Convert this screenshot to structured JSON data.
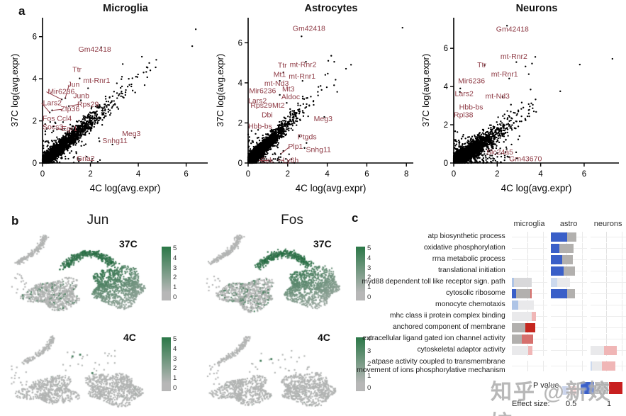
{
  "panel_labels": {
    "a": "a",
    "b": "b",
    "c": "c"
  },
  "watermark": "知乎 @新姣姣",
  "colors": {
    "point": "#000000",
    "gene_label": "#8e3a44",
    "green_hi": "#2b7747",
    "green_lo": "#b7b7b7",
    "blue": "#3a5fc8",
    "gray": "#b2b0ae",
    "lightblue": "#aec4e6",
    "palerblue": "#ccd9ee",
    "lightgray": "#d8d8da",
    "palegray": "#e9e9eb",
    "lightred": "#f0b6b6",
    "mutedred": "#d6706d",
    "red": "#c5271f"
  },
  "chart_data": [
    {
      "type": "scatter",
      "panel": "a",
      "title": "Microglia",
      "xlabel": "4C log(avg.expr)",
      "ylabel": "37C log(avg.expr)",
      "xlim": [
        0,
        6.9
      ],
      "ylim": [
        0,
        6.9
      ],
      "x_ticks": [
        0,
        2,
        4,
        6
      ],
      "y_ticks": [
        0,
        2,
        4,
        6
      ],
      "cloud": {
        "n": 2700,
        "scale": 0.72,
        "noise": 0.15,
        "stray": 120,
        "sx": 2.6,
        "sy": 2.3,
        "xstretch": 1
      },
      "outliers": [
        [
          6.4,
          6.35
        ],
        [
          6.25,
          5.55
        ],
        [
          4.75,
          4.9
        ],
        [
          4.35,
          4.55
        ],
        [
          4.5,
          4.4
        ],
        [
          3.35,
          4.7
        ],
        [
          3.9,
          4.1
        ],
        [
          4.15,
          5.05
        ],
        [
          3.6,
          4.0
        ],
        [
          3.3,
          3.4
        ],
        [
          2.45,
          5.5
        ]
      ],
      "labeled_genes": [
        {
          "name": "Gm42418",
          "x": 2.45,
          "y": 5.5,
          "lx": 1.5,
          "ly": 5.28
        },
        {
          "name": "Ttr",
          "x": 1.55,
          "y": 4.02,
          "lx": 1.25,
          "ly": 4.32
        },
        {
          "name": "Jun",
          "x": 0.95,
          "y": 3.08,
          "lx": 1.05,
          "ly": 3.62,
          "line": true
        },
        {
          "name": "mt-Rnr1",
          "x": 1.9,
          "y": 3.55,
          "lx": 1.7,
          "ly": 3.8
        },
        {
          "name": "Mir6236",
          "x": 0.8,
          "y": 3.02,
          "lx": 0.22,
          "ly": 3.28,
          "line": true
        },
        {
          "name": "Junb",
          "x": 1.6,
          "y": 2.98,
          "lx": 1.28,
          "ly": 3.08
        },
        {
          "name": "Lars2",
          "x": 0.3,
          "y": 2.4,
          "lx": 0.02,
          "ly": 2.75,
          "line": true
        },
        {
          "name": "Zfp36",
          "x": 0.4,
          "y": 2.5,
          "lx": 0.75,
          "ly": 2.45,
          "line": true
        },
        {
          "name": "Rps29",
          "x": 1.1,
          "y": 2.7,
          "lx": 1.45,
          "ly": 2.68,
          "line": true
        },
        {
          "name": "Fos",
          "x": 0.32,
          "y": 1.95,
          "lx": 0.0,
          "ly": 2.0
        },
        {
          "name": "Ccl4",
          "x": 0.52,
          "y": 1.93,
          "lx": 0.6,
          "ly": 2.0
        },
        {
          "name": "Socs3",
          "x": 0.45,
          "y": 1.52,
          "lx": 0.0,
          "ly": 1.6
        },
        {
          "name": "Egr1",
          "x": 0.6,
          "y": 1.6,
          "lx": 0.8,
          "ly": 1.52,
          "line": true
        },
        {
          "name": "Meg3",
          "x": 3.85,
          "y": 1.2,
          "lx": 3.32,
          "ly": 1.28
        },
        {
          "name": "Snhg11",
          "x": 2.92,
          "y": 0.88,
          "lx": 2.5,
          "ly": 0.95
        },
        {
          "name": "Gria2",
          "x": 1.32,
          "y": 0.3,
          "lx": 1.42,
          "ly": 0.1
        }
      ]
    },
    {
      "type": "scatter",
      "panel": "a",
      "title": "Astrocytes",
      "xlabel": "4C log(avg.expr)",
      "ylabel": "37C log(avg.expr)",
      "xlim": [
        0,
        8.35
      ],
      "ylim": [
        0,
        7.25
      ],
      "x_ticks": [
        0,
        2,
        4,
        6,
        8
      ],
      "y_ticks": [
        0,
        2,
        4,
        6
      ],
      "cloud": {
        "n": 3200,
        "scale": 0.58,
        "noise": 0.14,
        "stray": 140,
        "sx": 2.6,
        "sy": 1.9,
        "xstretch": 1
      },
      "outliers": [
        [
          7.8,
          6.75
        ],
        [
          5.2,
          4.9
        ],
        [
          4.2,
          5.35
        ],
        [
          4.05,
          5.1
        ],
        [
          4.35,
          5.05
        ],
        [
          3.9,
          4.4
        ],
        [
          3.55,
          3.8
        ],
        [
          4.5,
          3.55
        ],
        [
          3.3,
          3.1
        ],
        [
          2.7,
          6.32
        ],
        [
          2.92,
          5.05
        ]
      ],
      "labeled_genes": [
        {
          "name": "Gm42418",
          "x": 2.7,
          "y": 6.32,
          "lx": 2.25,
          "ly": 6.6
        },
        {
          "name": "Ttr",
          "x": 1.78,
          "y": 4.52,
          "lx": 1.5,
          "ly": 4.75
        },
        {
          "name": "mt-Rnr2",
          "x": 2.92,
          "y": 5.05,
          "lx": 2.1,
          "ly": 4.8
        },
        {
          "name": "Mt1",
          "x": 1.6,
          "y": 4.1,
          "lx": 1.28,
          "ly": 4.3
        },
        {
          "name": "mt-Rnr1",
          "x": 2.75,
          "y": 4.1,
          "lx": 2.05,
          "ly": 4.2
        },
        {
          "name": "mt-Nd3",
          "lx": 0.82,
          "ly": 3.85
        },
        {
          "name": "Mir6236",
          "lx": 0.05,
          "ly": 3.48
        },
        {
          "name": "Mt3",
          "x": 1.6,
          "y": 3.4,
          "lx": 1.72,
          "ly": 3.58
        },
        {
          "name": "Aldoc",
          "x": 1.95,
          "y": 3.0,
          "lx": 1.68,
          "ly": 3.18
        },
        {
          "name": "Lars2",
          "lx": 0.0,
          "ly": 2.98
        },
        {
          "name": "Rps29",
          "lx": 0.12,
          "ly": 2.75
        },
        {
          "name": "Mt2",
          "lx": 1.22,
          "ly": 2.75
        },
        {
          "name": "Dbi",
          "lx": 0.68,
          "ly": 2.28
        },
        {
          "name": "Meg3",
          "x": 3.85,
          "y": 2.3,
          "lx": 3.32,
          "ly": 2.08
        },
        {
          "name": "Hbb-bs",
          "x": 0.5,
          "y": 1.65,
          "lx": 0.0,
          "ly": 1.72
        },
        {
          "name": "Ptgds",
          "x": 2.95,
          "y": 1.0,
          "lx": 2.5,
          "ly": 1.18
        },
        {
          "name": "Plp1",
          "x": 1.65,
          "y": 0.45,
          "lx": 2.02,
          "ly": 0.7,
          "line": true
        },
        {
          "name": "Snhg11",
          "x": 2.85,
          "y": 0.75,
          "lx": 2.92,
          "ly": 0.55
        },
        {
          "name": "Cck",
          "x": 1.05,
          "y": 0.12,
          "lx": 0.62,
          "ly": 0.02,
          "line": true
        },
        {
          "name": "Ly6h",
          "x": 1.5,
          "y": 0.15,
          "lx": 1.75,
          "ly": 0.02,
          "line": true
        }
      ]
    },
    {
      "type": "scatter",
      "panel": "a",
      "title": "Neurons",
      "xlabel": "4C log(avg.expr)",
      "ylabel": "37C log(avg.expr)",
      "xlim": [
        0,
        7.6
      ],
      "ylim": [
        0,
        7.6
      ],
      "x_ticks": [
        0,
        2,
        4,
        6
      ],
      "y_ticks": [
        0,
        2,
        4,
        6
      ],
      "cloud": {
        "n": 3200,
        "scale": 0.5,
        "noise": 0.19,
        "stray": 280,
        "sx": 3.3,
        "sy": 1.8,
        "xstretch": 1.2
      },
      "outliers": [
        [
          7.3,
          5.45
        ],
        [
          5.8,
          5.15
        ],
        [
          4.9,
          3.75
        ],
        [
          3.75,
          5.55
        ],
        [
          3.6,
          5.2
        ],
        [
          3.3,
          5.05
        ],
        [
          3.45,
          4.65
        ],
        [
          3.2,
          2.9
        ],
        [
          2.45,
          7.18
        ],
        [
          2.88,
          5.28
        ]
      ],
      "labeled_genes": [
        {
          "name": "Gm42418",
          "x": 2.45,
          "y": 7.18,
          "lx": 1.95,
          "ly": 6.88
        },
        {
          "name": "mt-Rnr2",
          "x": 2.88,
          "y": 5.28,
          "lx": 2.15,
          "ly": 5.45
        },
        {
          "name": "Ttr",
          "x": 1.42,
          "y": 5.12,
          "lx": 1.08,
          "ly": 5.0
        },
        {
          "name": "mt-Rnr1",
          "x": 2.55,
          "y": 4.42,
          "lx": 1.72,
          "ly": 4.52
        },
        {
          "name": "Mir6236",
          "x": 0.3,
          "y": 3.9,
          "lx": 0.2,
          "ly": 4.18
        },
        {
          "name": "Lars2",
          "x": 0.28,
          "y": 3.72,
          "lx": 0.05,
          "ly": 3.5
        },
        {
          "name": "mt-Nd3",
          "x": 2.25,
          "y": 3.45,
          "lx": 1.45,
          "ly": 3.38
        },
        {
          "name": "Hbb-bs",
          "lx": 0.25,
          "ly": 2.8
        },
        {
          "name": "Rpl38",
          "lx": 0.0,
          "ly": 2.4
        },
        {
          "name": "Slc24a5",
          "lx": 1.5,
          "ly": 0.45
        },
        {
          "name": "Gm43670",
          "x": 2.5,
          "y": 0.32,
          "lx": 2.55,
          "ly": 0.1
        }
      ]
    },
    {
      "type": "umap_feature",
      "panel": "b",
      "title": "Jun",
      "subpanels": [
        {
          "label": "37C",
          "legend_ticks": [
            "5",
            "4",
            "3",
            "2",
            "1",
            "0"
          ]
        },
        {
          "label": "4C",
          "legend_ticks": [
            "5",
            "4",
            "3",
            "2",
            "1",
            "0"
          ],
          "highlight_points": [
            [
              0.42,
              0.33
            ],
            [
              0.47,
              0.31
            ],
            [
              0.55,
              0.52
            ]
          ]
        }
      ]
    },
    {
      "type": "umap_feature",
      "panel": "b",
      "title": "Fos",
      "subpanels": [
        {
          "label": "37C",
          "legend_ticks": [
            "5",
            "4",
            "3",
            "2",
            "1",
            "0"
          ]
        },
        {
          "label": "4C",
          "legend_ticks": [
            "4",
            "3",
            "2",
            "1",
            "0"
          ],
          "highlight_points": [
            [
              0.38,
              0.38
            ],
            [
              0.45,
              0.36
            ]
          ]
        }
      ]
    },
    {
      "type": "bar_facets",
      "panel": "c",
      "columns": [
        "microglia",
        "astro",
        "neurons"
      ],
      "p_label": "P value",
      "effect_size_label": "Effect size:",
      "effect_ticks": [
        "0.5",
        "1"
      ],
      "p_swatches_small": [
        "#c9d3ec",
        "#f2c6c6"
      ],
      "p_swatches_large": [
        "#3a5fc8",
        "#b9b9b9",
        "#c81f1f"
      ],
      "rows": [
        {
          "label_lines": [
            "atp biosynthetic process"
          ],
          "bars": {
            "astro": [
              [
                "blue",
                0.52
              ],
              [
                "gray",
                0.3
              ]
            ]
          }
        },
        {
          "label_lines": [
            "oxidative phosphorylation"
          ],
          "bars": {
            "astro": [
              [
                "blue",
                0.27
              ],
              [
                "gray",
                0.45
              ]
            ]
          }
        },
        {
          "label_lines": [
            "rrna metabolic process"
          ],
          "bars": {
            "astro": [
              [
                "blue",
                0.36
              ],
              [
                "gray",
                0.34
              ]
            ]
          }
        },
        {
          "label_lines": [
            "translational initiation"
          ],
          "bars": {
            "astro": [
              [
                "blue",
                0.4
              ],
              [
                "gray",
                0.37
              ]
            ]
          }
        },
        {
          "label_lines": [
            "myd88 dependent toll like receptor sign. path"
          ],
          "bars": {
            "microglia": [
              [
                "lightblue",
                0.07
              ],
              [
                "lightgray",
                0.58
              ]
            ],
            "astro": [
              [
                "palerblue",
                0.2
              ],
              [
                "palegray",
                0.42
              ]
            ]
          }
        },
        {
          "label_lines": [
            "cytosolic ribosome"
          ],
          "bars": {
            "microglia": [
              [
                "blue",
                0.15
              ],
              [
                "gray",
                0.45
              ],
              [
                "mutedred",
                0.05
              ]
            ],
            "astro": [
              [
                "blue",
                0.52
              ],
              [
                "gray",
                0.25
              ]
            ]
          }
        },
        {
          "label_lines": [
            "monocyte chemotaxis"
          ],
          "bars": {
            "microglia": [
              [
                "lightblue",
                0.22
              ],
              [
                "palegray",
                0.5
              ]
            ]
          }
        },
        {
          "label_lines": [
            "mhc class ii protein complex binding"
          ],
          "bars": {
            "microglia": [
              [
                "palegray",
                0.65
              ],
              [
                "lightred",
                0.13
              ]
            ]
          }
        },
        {
          "label_lines": [
            "anchored component of membrane"
          ],
          "bars": {
            "microglia": [
              [
                "gray",
                0.45
              ],
              [
                "red",
                0.3
              ]
            ]
          }
        },
        {
          "label_lines": [
            "extracellular ligand gated ion channel activity"
          ],
          "bars": {
            "microglia": [
              [
                "gray",
                0.33
              ],
              [
                "mutedred",
                0.35
              ]
            ]
          }
        },
        {
          "label_lines": [
            "cytoskeletal adaptor activity"
          ],
          "bars": {
            "microglia": [
              [
                "palegray",
                0.52
              ],
              [
                "lightred",
                0.14
              ]
            ],
            "neurons": [
              [
                "palegray",
                0.45
              ],
              [
                "lightred",
                0.4
              ]
            ]
          }
        },
        {
          "label_lines": [
            "atpase activity coupled to transmembrane",
            "movement of ions phosphorylative mechanism"
          ],
          "bars": {
            "neurons": [
              [
                "palerblue",
                0.06
              ],
              [
                "palegray",
                0.32
              ],
              [
                "lightred",
                0.42
              ]
            ]
          }
        }
      ]
    }
  ]
}
